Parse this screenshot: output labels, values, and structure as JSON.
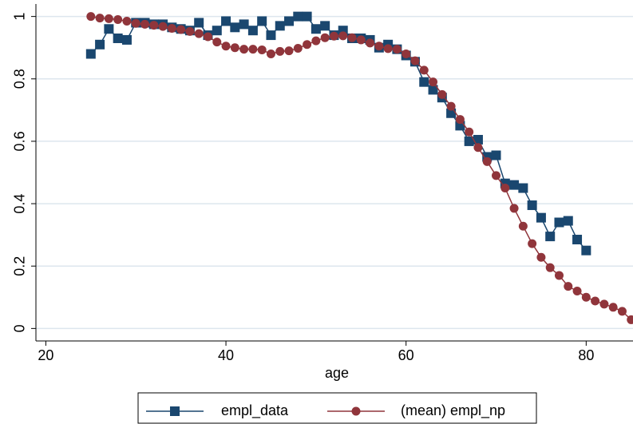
{
  "chart_data": {
    "type": "line",
    "x_label": "age",
    "x": [
      25,
      26,
      27,
      28,
      29,
      30,
      31,
      32,
      33,
      34,
      35,
      36,
      37,
      38,
      39,
      40,
      41,
      42,
      43,
      44,
      45,
      46,
      47,
      48,
      49,
      50,
      51,
      52,
      53,
      54,
      55,
      56,
      57,
      58,
      59,
      60,
      61,
      62,
      63,
      64,
      65,
      66,
      67,
      68,
      69,
      70,
      71,
      72,
      73,
      74,
      75,
      76,
      77,
      78,
      79,
      80,
      81,
      82,
      83,
      84,
      85
    ],
    "series": [
      {
        "name": "empl_data",
        "color": "#1a476f",
        "marker": "square",
        "values": [
          0.88,
          0.91,
          0.96,
          0.93,
          0.925,
          0.98,
          0.98,
          0.975,
          0.975,
          0.965,
          0.96,
          0.955,
          0.98,
          0.94,
          0.955,
          0.985,
          0.965,
          0.975,
          0.955,
          0.985,
          0.94,
          0.97,
          0.985,
          1.0,
          1.0,
          0.96,
          0.97,
          0.94,
          0.955,
          0.93,
          0.93,
          0.925,
          0.9,
          0.91,
          0.895,
          0.875,
          0.855,
          0.79,
          0.765,
          0.74,
          0.69,
          0.65,
          0.6,
          0.605,
          0.55,
          0.555,
          0.465,
          0.46,
          0.45,
          0.395,
          0.355,
          0.295,
          0.34,
          0.345,
          0.285,
          0.25,
          null,
          null,
          null,
          null,
          null
        ]
      },
      {
        "name": "(mean) empl_np",
        "color": "#90353b",
        "marker": "circle",
        "values": [
          1.0,
          0.995,
          0.993,
          0.99,
          0.985,
          0.978,
          0.975,
          0.972,
          0.968,
          0.962,
          0.958,
          0.952,
          0.945,
          0.935,
          0.918,
          0.905,
          0.9,
          0.895,
          0.895,
          0.893,
          0.88,
          0.888,
          0.89,
          0.898,
          0.91,
          0.922,
          0.932,
          0.937,
          0.938,
          0.932,
          0.925,
          0.915,
          0.905,
          0.897,
          0.895,
          0.88,
          0.858,
          0.828,
          0.79,
          0.75,
          0.712,
          0.67,
          0.63,
          0.58,
          0.535,
          0.49,
          0.45,
          0.385,
          0.328,
          0.272,
          0.228,
          0.195,
          0.17,
          0.135,
          0.12,
          0.1,
          0.088,
          0.078,
          0.068,
          0.055,
          0.028
        ]
      }
    ],
    "xlim": [
      18.9,
      85.2
    ],
    "xticks": [
      20,
      40,
      60,
      80
    ],
    "ylim": [
      -0.04,
      1.04
    ],
    "yticks": [
      0,
      0.2,
      0.4,
      0.6,
      0.8,
      1
    ],
    "grid": true,
    "legend": "bottom"
  }
}
